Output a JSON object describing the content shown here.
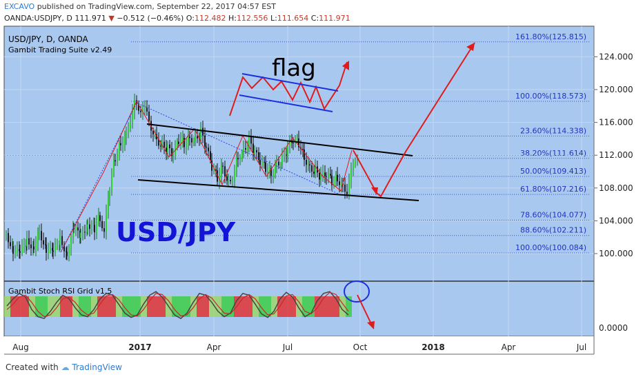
{
  "header": {
    "publisher": "EXCAVO",
    "published_text": "published on TradingView.com, September 22, 2017 04:57 EST",
    "symbol": "OANDA:USDJPY, D",
    "last": "111.971",
    "change": "−0.512 (−0.46%)",
    "open_label": "O:",
    "open": "112.482",
    "high_label": "H:",
    "high": "112.556",
    "low_label": "L:",
    "low": "111.654",
    "close_label": "C:",
    "close": "111.971"
  },
  "footer": {
    "created_with": "Created with",
    "brand": "TradingView"
  },
  "chart_data": {
    "type": "candlestick",
    "title": "USD/JPY, D, OANDA",
    "subtitle": "Gambit Trading Suite v2.49",
    "watermark": "USD/JPY",
    "annotation": "flag",
    "ylim": [
      97,
      126.5
    ],
    "y_ticks": [
      "124.000",
      "120.000",
      "116.000",
      "112.000",
      "108.000",
      "104.000",
      "100.000"
    ],
    "y_tick_values": [
      124,
      120,
      116,
      112,
      108,
      104,
      100
    ],
    "x_ticks": [
      "Aug",
      "2017",
      "Apr",
      "Jul",
      "Oct",
      "2018",
      "Apr",
      "Jul"
    ],
    "last_price": 111.971,
    "fib_levels": [
      {
        "label": "161.80%(125.815)",
        "value": 125.815
      },
      {
        "label": "100.00%(118.573)",
        "value": 118.573
      },
      {
        "label": "23.60%(114.338)",
        "value": 114.338
      },
      {
        "label": "38.20%(111.614)",
        "value": 111.614
      },
      {
        "label": "50.00%(109.413)",
        "value": 109.413
      },
      {
        "label": "61.80%(107.216)",
        "value": 107.216
      },
      {
        "label": "78.60%(104.077)",
        "value": 104.077
      },
      {
        "label": "88.60%(102.211)",
        "value": 102.211
      },
      {
        "label": "100.00%(100.084)",
        "value": 100.084
      }
    ],
    "price_path": [
      [
        0,
        102.5
      ],
      [
        10,
        100.5
      ],
      [
        20,
        99.8
      ],
      [
        30,
        101.5
      ],
      [
        40,
        101.0
      ],
      [
        48,
        102.8
      ],
      [
        58,
        100.6
      ],
      [
        68,
        99.9
      ],
      [
        78,
        101.8
      ],
      [
        88,
        100.2
      ],
      [
        98,
        103.0
      ],
      [
        108,
        102.0
      ],
      [
        118,
        103.8
      ],
      [
        128,
        103.0
      ],
      [
        136,
        104.5
      ],
      [
        142,
        102.4
      ],
      [
        150,
        108.0
      ],
      [
        158,
        111.8
      ],
      [
        166,
        113.5
      ],
      [
        174,
        114.6
      ],
      [
        180,
        116.5
      ],
      [
        186,
        118.2
      ],
      [
        192,
        117.6
      ],
      [
        198,
        118.0
      ],
      [
        204,
        116.8
      ],
      [
        210,
        115.5
      ],
      [
        218,
        114.0
      ],
      [
        226,
        113.2
      ],
      [
        234,
        112.8
      ],
      [
        242,
        111.9
      ],
      [
        250,
        113.8
      ],
      [
        258,
        113.5
      ],
      [
        266,
        114.2
      ],
      [
        274,
        113.9
      ],
      [
        282,
        114.8
      ],
      [
        290,
        112.8
      ],
      [
        298,
        110.5
      ],
      [
        306,
        109.3
      ],
      [
        314,
        110.8
      ],
      [
        322,
        108.6
      ],
      [
        328,
        109.5
      ],
      [
        336,
        111.8
      ],
      [
        344,
        112.6
      ],
      [
        352,
        113.8
      ],
      [
        360,
        112.3
      ],
      [
        368,
        111.0
      ],
      [
        376,
        110.5
      ],
      [
        384,
        109.8
      ],
      [
        392,
        111.0
      ],
      [
        400,
        111.4
      ],
      [
        408,
        112.8
      ],
      [
        416,
        113.7
      ],
      [
        424,
        113.5
      ],
      [
        432,
        111.8
      ],
      [
        440,
        110.6
      ],
      [
        448,
        110.1
      ],
      [
        456,
        109.3
      ],
      [
        464,
        109.5
      ],
      [
        472,
        108.9
      ],
      [
        480,
        109.2
      ],
      [
        488,
        108.3
      ],
      [
        494,
        107.7
      ],
      [
        500,
        109.8
      ],
      [
        506,
        111.6
      ],
      [
        512,
        112.3
      ]
    ],
    "stoch_rsi": {
      "name": "Gambit Stoch RSI Grid v1.5",
      "y_ticks": [
        "0.0000"
      ],
      "k": [
        50,
        70,
        85,
        75,
        40,
        20,
        15,
        35,
        60,
        80,
        70,
        45,
        25,
        20,
        40,
        70,
        85,
        80,
        55,
        30,
        18,
        25,
        55,
        80,
        90,
        75,
        50,
        25,
        15,
        30,
        60,
        85,
        80,
        60,
        35,
        20,
        30,
        65,
        85,
        80,
        55,
        28,
        18,
        35,
        70,
        88,
        75,
        45,
        20,
        30,
        65,
        85,
        90,
        70,
        40,
        25
      ],
      "d": [
        40,
        55,
        75,
        80,
        60,
        35,
        20,
        25,
        45,
        70,
        75,
        60,
        38,
        25,
        30,
        55,
        78,
        82,
        68,
        45,
        25,
        22,
        40,
        65,
        85,
        82,
        65,
        40,
        22,
        25,
        45,
        70,
        82,
        72,
        50,
        30,
        28,
        48,
        72,
        82,
        70,
        45,
        25,
        28,
        50,
        78,
        82,
        62,
        35,
        28,
        45,
        72,
        88,
        82,
        58,
        35
      ]
    }
  }
}
